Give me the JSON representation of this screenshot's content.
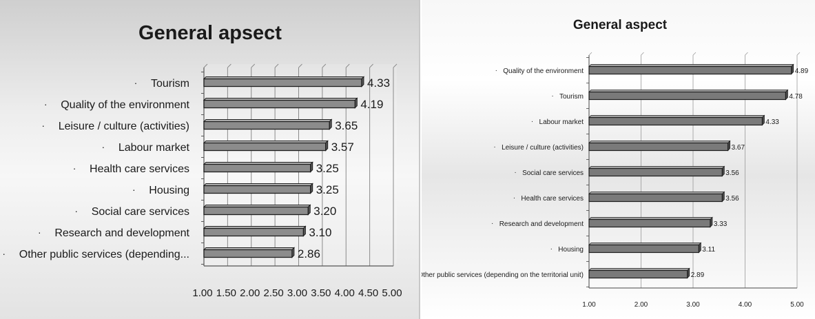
{
  "chart_data": [
    {
      "type": "bar",
      "orientation": "horizontal",
      "title": "General apsect",
      "categories": [
        "Tourism",
        "Quality of the environment",
        "Leisure / culture (activities)",
        "Labour market",
        "Health care services",
        "Housing",
        "Social care services",
        "Research and development",
        "Other public services (depending..."
      ],
      "values": [
        4.33,
        4.19,
        3.65,
        3.57,
        3.25,
        3.25,
        3.2,
        3.1,
        2.86
      ],
      "value_labels": [
        "4.33",
        "4.19",
        "3.65",
        "3.57",
        "3.25",
        "3.25",
        "3.20",
        "3.10",
        "2.86"
      ],
      "xlim": [
        1.0,
        5.0
      ],
      "tick_labels": [
        "1.00",
        "1.50",
        "2.00",
        "2.50",
        "3.00",
        "3.50",
        "4.00",
        "4.50",
        "5.00"
      ],
      "grid": true,
      "colors": {
        "bar": "#8c8c8c",
        "bar_edge": "#1e1e1e"
      }
    },
    {
      "type": "bar",
      "orientation": "horizontal",
      "title": "General aspect",
      "categories": [
        "Quality of the environment",
        "Tourism",
        "Labour market",
        "Leisure / culture (activities)",
        "Social care services",
        "Health care services",
        "Research and development",
        "Housing",
        "Other public services (depending on the territorial unit)"
      ],
      "values": [
        4.89,
        4.78,
        4.33,
        3.67,
        3.56,
        3.56,
        3.33,
        3.11,
        2.89
      ],
      "value_labels": [
        "4.89",
        "4.78",
        "4.33",
        "3.67",
        "3.56",
        "3.56",
        "3.33",
        "3.11",
        "2.89"
      ],
      "xlim": [
        1.0,
        5.0
      ],
      "tick_labels": [
        "1.00",
        "2.00",
        "3.00",
        "4.00",
        "5.00"
      ],
      "grid": true,
      "colors": {
        "bar": "#7a7a7a",
        "bar_edge": "#1e1e1e"
      }
    }
  ]
}
